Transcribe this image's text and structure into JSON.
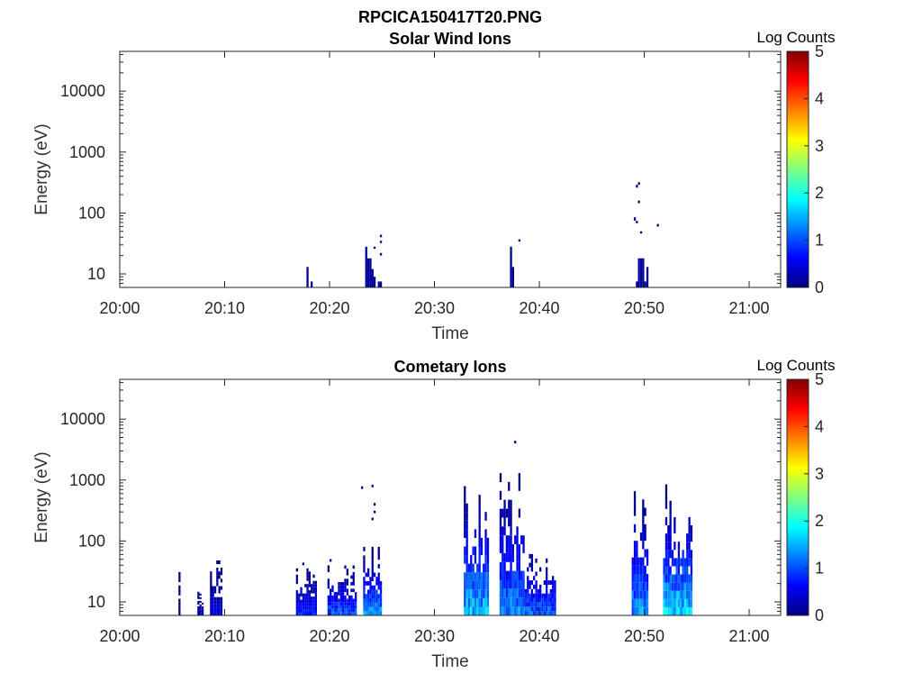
{
  "figure": {
    "title": "RPCICA150417T20.PNG"
  },
  "chart_data": [
    {
      "type": "heatmap",
      "title": "Solar Wind Ions",
      "xlabel": "Time",
      "ylabel": "Energy (eV)",
      "colorbar_label": "Log Counts",
      "x_ticks": [
        "20:00",
        "20:10",
        "20:20",
        "20:30",
        "20:40",
        "20:50",
        "21:00"
      ],
      "xlim_minutes": [
        0,
        63
      ],
      "y_ticks": [
        10,
        100,
        1000,
        10000
      ],
      "ylim": [
        6,
        45000
      ],
      "yscale": "log",
      "colorbar_ticks": [
        0,
        1,
        2,
        3,
        4,
        5
      ],
      "clim": [
        0,
        5
      ],
      "colormap": "jet",
      "segments": [
        {
          "t": 17.8,
          "e_lo": 6,
          "e_hi": 13,
          "v": 0.1
        },
        {
          "t": 18.2,
          "e_lo": 6,
          "e_hi": 7.5,
          "v": 0.1
        },
        {
          "t": 23.4,
          "e_lo": 6,
          "e_hi": 28,
          "v": 0.1
        },
        {
          "t": 23.6,
          "e_lo": 6,
          "e_hi": 18,
          "v": 0.2
        },
        {
          "t": 23.8,
          "e_lo": 6,
          "e_hi": 18,
          "v": 0.1
        },
        {
          "t": 24.0,
          "e_lo": 6,
          "e_hi": 12,
          "v": 0.1
        },
        {
          "t": 24.2,
          "e_lo": 6,
          "e_hi": 9,
          "v": 0.1
        },
        {
          "t": 24.2,
          "e_lo": 26,
          "e_hi": 28,
          "v": 0.1
        },
        {
          "t": 24.6,
          "e_lo": 6,
          "e_hi": 7.5,
          "v": 0.1
        },
        {
          "t": 24.8,
          "e_lo": 6,
          "e_hi": 7.5,
          "v": 0.1
        },
        {
          "t": 24.8,
          "e_lo": 20,
          "e_hi": 22,
          "v": 0.1
        },
        {
          "t": 24.8,
          "e_lo": 32,
          "e_hi": 35,
          "v": 0.1
        },
        {
          "t": 24.8,
          "e_lo": 40,
          "e_hi": 44,
          "v": 0.1
        },
        {
          "t": 37.2,
          "e_lo": 6,
          "e_hi": 28,
          "v": 0.1
        },
        {
          "t": 37.4,
          "e_lo": 6,
          "e_hi": 13,
          "v": 0.1
        },
        {
          "t": 38.0,
          "e_lo": 34,
          "e_hi": 37,
          "v": 0.1
        },
        {
          "t": 49.2,
          "e_lo": 6,
          "e_hi": 7.5,
          "v": 0.1
        },
        {
          "t": 49.4,
          "e_lo": 6,
          "e_hi": 18,
          "v": 0.1
        },
        {
          "t": 49.6,
          "e_lo": 6,
          "e_hi": 18,
          "v": 0.2
        },
        {
          "t": 49.8,
          "e_lo": 6,
          "e_hi": 18,
          "v": 0.1
        },
        {
          "t": 50.0,
          "e_lo": 6,
          "e_hi": 7.5,
          "v": 0.1
        },
        {
          "t": 50.2,
          "e_lo": 6,
          "e_hi": 13,
          "v": 0.1
        },
        {
          "t": 49.0,
          "e_lo": 75,
          "e_hi": 85,
          "v": 0.1
        },
        {
          "t": 49.2,
          "e_lo": 68,
          "e_hi": 74,
          "v": 0.1
        },
        {
          "t": 49.2,
          "e_lo": 260,
          "e_hi": 290,
          "v": 0.1
        },
        {
          "t": 49.4,
          "e_lo": 290,
          "e_hi": 320,
          "v": 0.1
        },
        {
          "t": 49.4,
          "e_lo": 145,
          "e_hi": 160,
          "v": 0.1
        },
        {
          "t": 49.6,
          "e_lo": 46,
          "e_hi": 50,
          "v": 0.1
        },
        {
          "t": 51.2,
          "e_lo": 60,
          "e_hi": 66,
          "v": 0.1
        }
      ]
    },
    {
      "type": "heatmap",
      "title": "Cometary Ions",
      "xlabel": "Time",
      "ylabel": "Energy (eV)",
      "colorbar_label": "Log Counts",
      "x_ticks": [
        "20:00",
        "20:10",
        "20:20",
        "20:30",
        "20:40",
        "20:50",
        "21:00"
      ],
      "xlim_minutes": [
        0,
        63
      ],
      "y_ticks": [
        10,
        100,
        1000,
        10000
      ],
      "ylim": [
        6,
        45000
      ],
      "yscale": "log",
      "colorbar_ticks": [
        0,
        1,
        2,
        3,
        4,
        5
      ],
      "clim": [
        0,
        5
      ],
      "colormap": "jet",
      "bursts": [
        {
          "t0": 5.6,
          "t1": 5.8,
          "top": 45,
          "peak": 0.05,
          "sparse": 0.3
        },
        {
          "t0": 7.4,
          "t1": 8.0,
          "top": 18,
          "peak": 0.3,
          "sparse": 0.4
        },
        {
          "t0": 8.6,
          "t1": 9.8,
          "top": 55,
          "peak": 0.5,
          "sparse": 0.4
        },
        {
          "t0": 16.8,
          "t1": 18.8,
          "top": 40,
          "peak": 0.9,
          "sparse": 0.3
        },
        {
          "t0": 19.8,
          "t1": 22.6,
          "top": 45,
          "peak": 1.2,
          "sparse": 0.3
        },
        {
          "t0": 23.2,
          "t1": 25.0,
          "top": 80,
          "peak": 1.6,
          "sparse": 0.15
        },
        {
          "t0": 32.8,
          "t1": 35.2,
          "top": 1100,
          "peak": 1.8,
          "sparse": 0.2
        },
        {
          "t0": 36.2,
          "t1": 38.6,
          "top": 1300,
          "peak": 1.5,
          "sparse": 0.3
        },
        {
          "t0": 38.6,
          "t1": 41.6,
          "top": 85,
          "peak": 1.3,
          "sparse": 0.4
        },
        {
          "t0": 48.8,
          "t1": 50.4,
          "top": 900,
          "peak": 1.5,
          "sparse": 0.25
        },
        {
          "t0": 51.8,
          "t1": 54.6,
          "top": 850,
          "peak": 1.9,
          "sparse": 0.25
        }
      ],
      "points": [
        {
          "t": 37.6,
          "e": 4200,
          "v": 0.1
        },
        {
          "t": 23.0,
          "e": 750,
          "v": 0.1
        },
        {
          "t": 24.0,
          "e": 800,
          "v": 0.1
        },
        {
          "t": 24.2,
          "e": 400,
          "v": 0.1
        },
        {
          "t": 24.2,
          "e": 300,
          "v": 0.1
        },
        {
          "t": 24.0,
          "e": 230,
          "v": 0.1
        },
        {
          "t": 17.4,
          "e": 42,
          "v": 0.1
        },
        {
          "t": 20.0,
          "e": 48,
          "v": 0.1
        }
      ]
    }
  ]
}
